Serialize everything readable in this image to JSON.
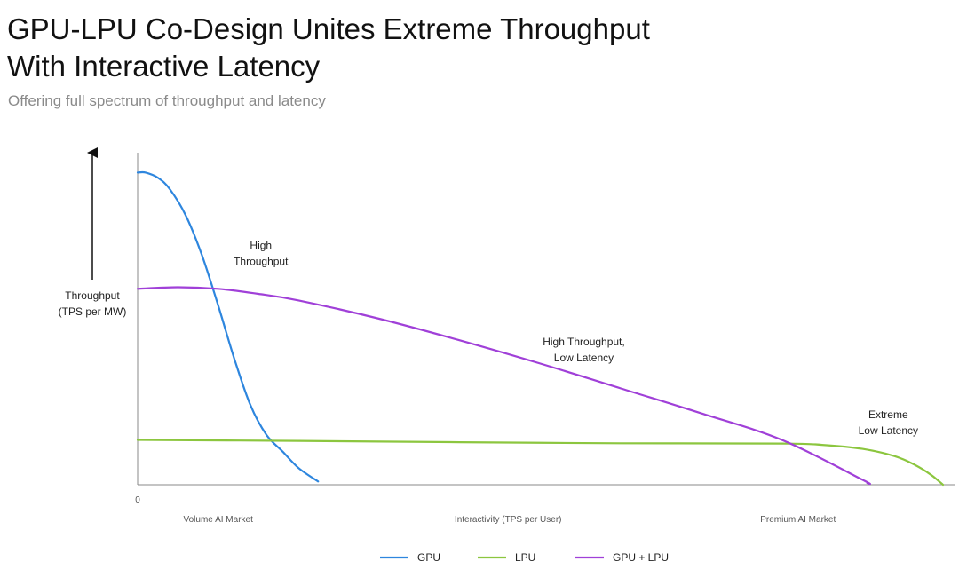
{
  "header": {
    "title": "GPU-LPU Co-Design Unites Extreme Throughput With Interactive Latency",
    "subtitle": "Offering full spectrum of throughput and latency"
  },
  "chart_data": {
    "type": "line",
    "title": "GPU-LPU Co-Design Unites Extreme Throughput With Interactive Latency",
    "subtitle": "Offering full spectrum of throughput and latency",
    "ylabel_lines": [
      "Throughput",
      "(TPS per MW)"
    ],
    "xlabel": "Interactivity (TPS per User)",
    "x_origin_label": "0",
    "x_region_labels": [
      {
        "text": "Volume AI Market",
        "x": 10
      },
      {
        "text": "Interactivity (TPS per User)",
        "x": 46
      },
      {
        "text": "Premium AI Market",
        "x": 82
      }
    ],
    "xlim": [
      0,
      100
    ],
    "ylim": [
      0,
      100
    ],
    "grid": false,
    "legend_position": "bottom-center",
    "series": [
      {
        "name": "GPU",
        "color": "#2e86de",
        "x": [
          0,
          1,
          2.5,
          4,
          6,
          8,
          10,
          12,
          14,
          16,
          18,
          20,
          22.4
        ],
        "y": [
          94,
          94,
          92.5,
          89,
          81,
          69,
          54,
          38,
          24,
          15,
          10,
          5,
          1
        ]
      },
      {
        "name": "LPU",
        "color": "#8cc63f",
        "x": [
          0,
          20,
          40,
          60,
          80,
          85,
          90,
          94,
          96.5,
          98.5,
          100
        ],
        "y": [
          13.5,
          13.2,
          12.8,
          12.5,
          12.4,
          12.0,
          10.8,
          8.6,
          6.0,
          3.0,
          0
        ]
      },
      {
        "name": "GPU + LPU",
        "color": "#a040d8",
        "x": [
          0,
          5,
          10,
          15,
          20,
          30,
          40,
          50,
          60,
          70,
          80,
          90,
          90.6
        ],
        "y": [
          59,
          59.5,
          59,
          57.5,
          55.5,
          50,
          43.5,
          36.5,
          29,
          21.5,
          13.5,
          1.5,
          0.5
        ]
      }
    ],
    "annotations": [
      {
        "lines": [
          "High",
          "Throughput"
        ],
        "x": 15.3,
        "y": 71
      },
      {
        "lines": [
          "High Throughput,",
          "Low Latency"
        ],
        "x": 55.4,
        "y": 42
      },
      {
        "lines": [
          "Extreme",
          "Low Latency"
        ],
        "x": 93.2,
        "y": 20
      }
    ]
  }
}
